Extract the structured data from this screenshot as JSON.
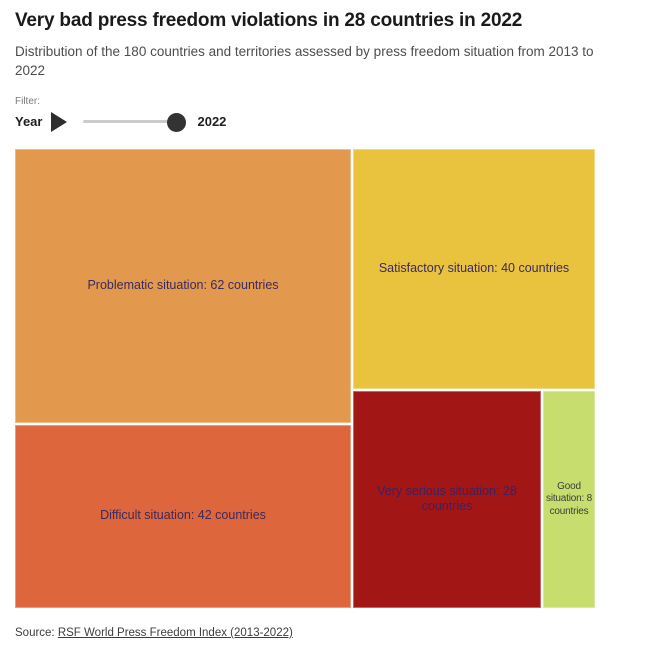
{
  "header": {
    "title": "Very bad press freedom violations in 28 countries in 2022",
    "subtitle": "Distribution of the 180 countries and territories assessed by press freedom situation from 2013 to 2022"
  },
  "filter": {
    "label": "Filter:",
    "name": "Year",
    "value": "2022",
    "play_icon": "play-triangle",
    "range_start": "2013",
    "range_end": "2022"
  },
  "chart_data": {
    "type": "treemap",
    "title": "Very bad press freedom violations in 28 countries in 2022",
    "subtitle": "Distribution of the 180 countries and territories assessed by press freedom situation from 2013 to 2022",
    "year_shown": 2022,
    "total_countries": 180,
    "unit": "countries",
    "legend_position": "none",
    "categories": [
      "Problematic situation",
      "Satisfactory situation",
      "Difficult situation",
      "Very serious situation",
      "Good situation"
    ],
    "values": [
      62,
      40,
      42,
      28,
      8
    ],
    "cells": [
      {
        "category": "Problematic situation",
        "value": 62,
        "label": "Problematic situation: 62 countries",
        "color": "#e2994e",
        "text_color": "#3b2a5e"
      },
      {
        "category": "Satisfactory situation",
        "value": 40,
        "label": "Satisfactory situation: 40 countries",
        "color": "#e9c33e",
        "text_color": "#3b2a5e"
      },
      {
        "category": "Difficult situation",
        "value": 42,
        "label": "Difficult situation: 42 countries",
        "color": "#dd663c",
        "text_color": "#3b2a5e"
      },
      {
        "category": "Very serious situation",
        "value": 28,
        "label": "Very serious situation: 28 countries",
        "color": "#a21616",
        "text_color": "#3e2160"
      },
      {
        "category": "Good situation",
        "value": 8,
        "label": "Good situation: 8 countries",
        "color": "#c7de6f",
        "text_color": "#3c3c3c"
      }
    ]
  },
  "source": {
    "prefix": "Source: ",
    "link_text": "RSF World Press Freedom Index (2013-2022)"
  }
}
